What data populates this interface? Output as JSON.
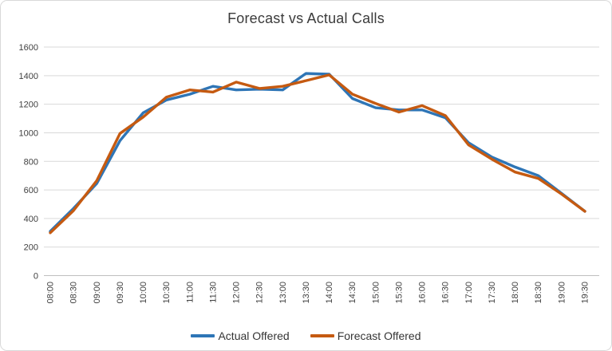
{
  "title": "Forecast vs Actual Calls",
  "legend": [
    {
      "label": "Actual Offered",
      "color": "#2E75B6"
    },
    {
      "label": "Forecast Offered",
      "color": "#C55A11"
    }
  ],
  "colors": {
    "actual_series": "#2E75B6",
    "forecast_series": "#C55A11",
    "gridline": "#D9D9D9",
    "axis_line": "#BFBFBF",
    "axis_text": "#3f3f3f",
    "title_text": "#3b3b3b",
    "border": "#D9D9D9",
    "background": "#FFFFFF"
  },
  "chart_data": {
    "type": "line",
    "title": "Forecast vs Actual Calls",
    "categories": [
      "08:00",
      "08:30",
      "09:00",
      "09:30",
      "10:00",
      "10:30",
      "11:00",
      "11:30",
      "12:00",
      "12:30",
      "13:00",
      "13:30",
      "14:00",
      "14:30",
      "15:00",
      "15:30",
      "16:00",
      "16:30",
      "17:00",
      "17:30",
      "18:00",
      "18:30",
      "19:00",
      "19:30"
    ],
    "series": [
      {
        "name": "Actual Offered",
        "color": "#2E75B6",
        "values": [
          310,
          470,
          645,
          945,
          1140,
          1230,
          1270,
          1325,
          1300,
          1305,
          1300,
          1415,
          1410,
          1240,
          1175,
          1160,
          1160,
          1105,
          930,
          830,
          760,
          700,
          575,
          450
        ]
      },
      {
        "name": "Forecast Offered",
        "color": "#C55A11",
        "values": [
          300,
          455,
          665,
          995,
          1110,
          1250,
          1300,
          1285,
          1355,
          1310,
          1325,
          1365,
          1405,
          1270,
          1205,
          1145,
          1190,
          1120,
          915,
          815,
          725,
          680,
          570,
          450
        ]
      }
    ],
    "xlabel": "",
    "ylabel": "",
    "ylim": [
      0,
      1600
    ],
    "yticks": [
      0,
      200,
      400,
      600,
      800,
      1000,
      1200,
      1400,
      1600
    ],
    "x_tick_rotation_deg": 90,
    "grid": "horizontal",
    "legend_position": "bottom"
  }
}
